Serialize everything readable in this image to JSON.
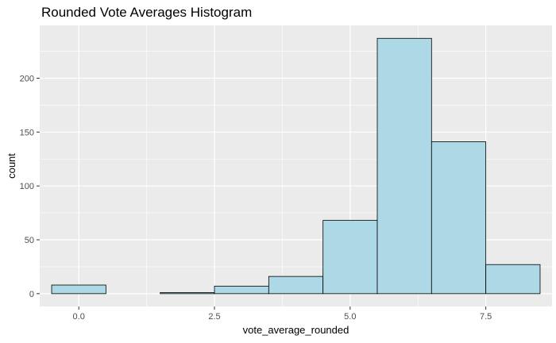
{
  "chart_data": {
    "type": "bar",
    "title": "Rounded Vote Averages Histogram",
    "xlabel": "vote_average_rounded",
    "ylabel": "count",
    "categories": [
      "0",
      "1",
      "2",
      "3",
      "4",
      "5",
      "6",
      "7",
      "8"
    ],
    "x": [
      0,
      1,
      2,
      3,
      4,
      5,
      6,
      7,
      8
    ],
    "values": [
      8,
      0,
      1,
      7,
      16,
      68,
      237,
      141,
      27
    ],
    "xlim": [
      -0.72,
      8.72
    ],
    "ylim": [
      -11.9,
      249
    ],
    "xticks": [
      0.0,
      2.5,
      5.0,
      7.5
    ],
    "xtick_labels": [
      "0.0",
      "2.5",
      "5.0",
      "7.5"
    ],
    "yticks": [
      0,
      50,
      100,
      150,
      200
    ],
    "ytick_labels": [
      "0",
      "50",
      "100",
      "150",
      "200"
    ],
    "grid": true,
    "legend": "none",
    "colors": {
      "bar_fill": "#add8e6",
      "bar_stroke": "#000000",
      "panel_background": "#ebebeb",
      "grid_major": "#ffffff",
      "tick_text": "#4d4d4d"
    }
  }
}
